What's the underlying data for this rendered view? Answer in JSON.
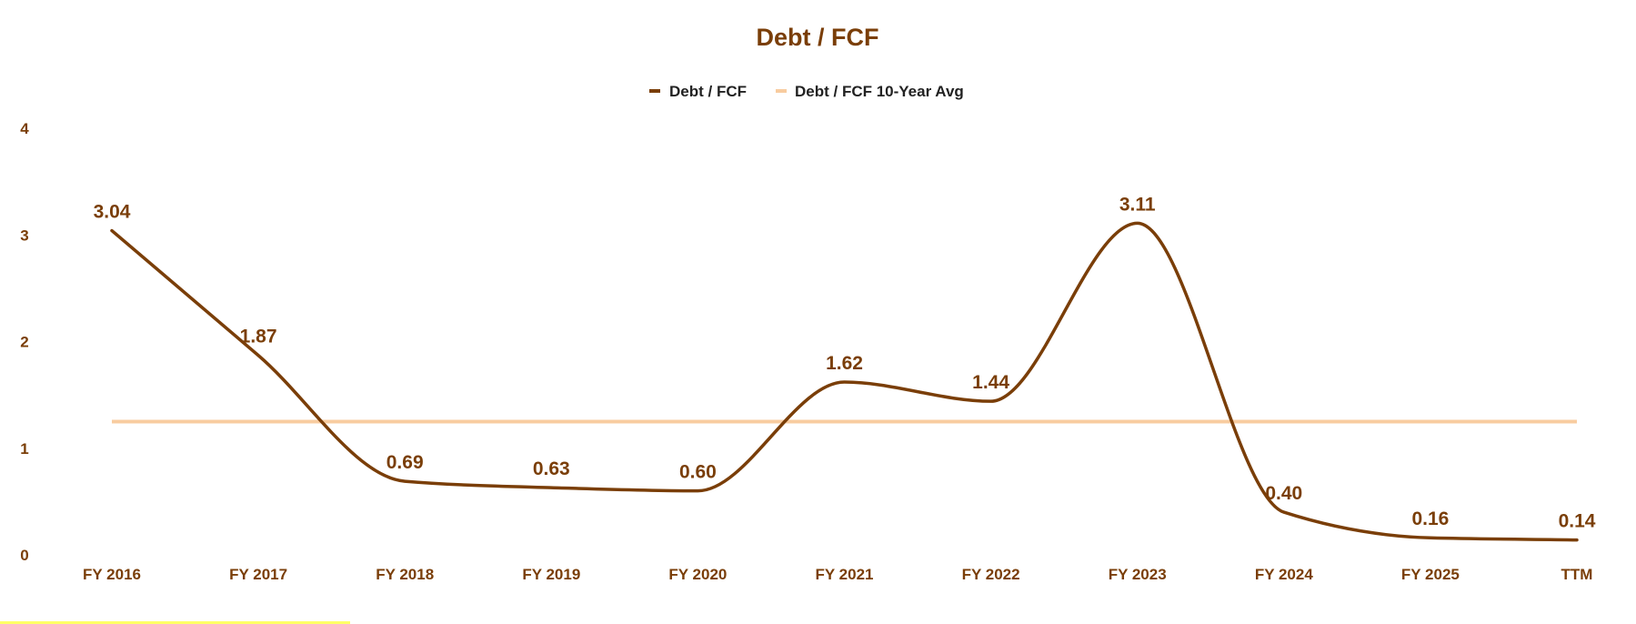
{
  "colors": {
    "series": "#7a3e08",
    "average": "#f8cca0",
    "text": "#7a3e08",
    "legend_text": "#222222",
    "highlight": "#ffff66"
  },
  "chart_data": {
    "type": "line",
    "title": "Debt / FCF",
    "xlabel": "",
    "ylabel": "",
    "categories": [
      "FY 2016",
      "FY 2017",
      "FY 2018",
      "FY 2019",
      "FY 2020",
      "FY 2021",
      "FY 2022",
      "FY 2023",
      "FY 2024",
      "FY 2025",
      "TTM"
    ],
    "series": [
      {
        "name": "Debt / FCF",
        "values": [
          3.04,
          1.87,
          0.69,
          0.63,
          0.6,
          1.62,
          1.44,
          3.11,
          0.4,
          0.16,
          0.14
        ],
        "labels": [
          "3.04",
          "1.87",
          "0.69",
          "0.63",
          "0.60",
          "1.62",
          "1.44",
          "3.11",
          "0.40",
          "0.16",
          "0.14"
        ]
      },
      {
        "name": "Debt / FCF 10-Year Avg",
        "values": [
          1.25,
          1.25,
          1.25,
          1.25,
          1.25,
          1.25,
          1.25,
          1.25,
          1.25,
          1.25,
          1.25
        ]
      }
    ],
    "ylim": [
      0,
      4
    ],
    "yticks": [
      "0",
      "1",
      "2",
      "3",
      "4"
    ],
    "legend_position": "top-center",
    "grid": false
  }
}
